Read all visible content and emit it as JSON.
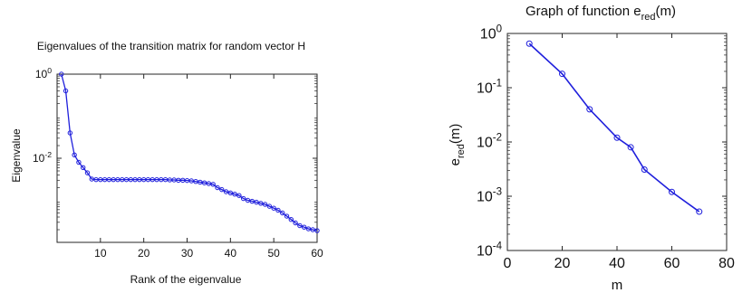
{
  "colors": {
    "series": "#1f1fdc",
    "axis": "#262626",
    "background": "#ffffff"
  },
  "chart_data": [
    {
      "type": "line",
      "title": "Eigenvalues of the transition matrix for random vector H",
      "xlabel": "Rank of the eigenvalue",
      "ylabel": "Eigenvalue",
      "xlim": [
        0,
        60
      ],
      "ylim": [
        0.0001,
        1
      ],
      "yscale": "log",
      "x_ticks": [
        "10",
        "20",
        "30",
        "40",
        "50",
        "60"
      ],
      "y_ticks": [
        {
          "base": "10",
          "exp": "0",
          "value": 1
        },
        {
          "base": "10",
          "exp": "-2",
          "value": 0.01
        }
      ],
      "grid": false,
      "marker": "circle",
      "series": [
        {
          "x": [
            1,
            2,
            3,
            4,
            5,
            6,
            7,
            8,
            9,
            10,
            11,
            12,
            13,
            14,
            15,
            16,
            17,
            18,
            19,
            20,
            21,
            22,
            23,
            24,
            25,
            26,
            27,
            28,
            29,
            30,
            31,
            32,
            33,
            34,
            35,
            36,
            37,
            38,
            39,
            40,
            41,
            42,
            43,
            44,
            45,
            46,
            47,
            48,
            49,
            50,
            51,
            52,
            53,
            54,
            55,
            56,
            57,
            58,
            59,
            60
          ],
          "values": [
            1.0,
            0.4,
            0.04,
            0.012,
            0.008,
            0.006,
            0.0045,
            0.0032,
            0.0031,
            0.0031,
            0.0031,
            0.0031,
            0.0031,
            0.0031,
            0.0031,
            0.0031,
            0.0031,
            0.0031,
            0.0031,
            0.0031,
            0.0031,
            0.0031,
            0.0031,
            0.0031,
            0.0031,
            0.00305,
            0.00305,
            0.003,
            0.003,
            0.00295,
            0.0029,
            0.0028,
            0.0027,
            0.0026,
            0.0025,
            0.0024,
            0.002,
            0.0018,
            0.0016,
            0.0015,
            0.0014,
            0.0013,
            0.0011,
            0.001,
            0.00095,
            0.0009,
            0.00085,
            0.0008,
            0.00072,
            0.00065,
            0.00058,
            0.0005,
            0.00042,
            0.00035,
            0.00029,
            0.00025,
            0.00023,
            0.00021,
            0.0002,
            0.00019
          ]
        }
      ]
    },
    {
      "type": "line",
      "title_base": "Graph of function e",
      "title_sub": "red",
      "title_tail": "(m)",
      "xlabel": "m",
      "ylabel_base": "e",
      "ylabel_sub": "red",
      "ylabel_tail": "(m)",
      "xlim": [
        0,
        80
      ],
      "ylim": [
        0.0001,
        1
      ],
      "yscale": "log",
      "x_ticks": [
        "0",
        "20",
        "40",
        "60",
        "80"
      ],
      "y_ticks": [
        {
          "base": "10",
          "exp": "0",
          "value": 1
        },
        {
          "base": "10",
          "exp": "-1",
          "value": 0.1
        },
        {
          "base": "10",
          "exp": "-2",
          "value": 0.01
        },
        {
          "base": "10",
          "exp": "-3",
          "value": 0.001
        },
        {
          "base": "10",
          "exp": "-4",
          "value": 0.0001
        }
      ],
      "grid": false,
      "marker": "circle",
      "series": [
        {
          "x": [
            8,
            20,
            30,
            40,
            45,
            50,
            60,
            70
          ],
          "values": [
            0.65,
            0.18,
            0.04,
            0.012,
            0.008,
            0.0031,
            0.0012,
            0.00052
          ]
        }
      ]
    }
  ]
}
